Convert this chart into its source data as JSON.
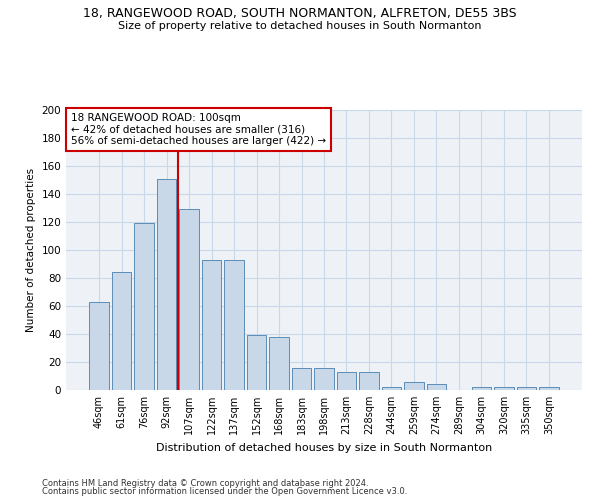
{
  "title_line1": "18, RANGEWOOD ROAD, SOUTH NORMANTON, ALFRETON, DE55 3BS",
  "title_line2": "Size of property relative to detached houses in South Normanton",
  "xlabel": "Distribution of detached houses by size in South Normanton",
  "ylabel": "Number of detached properties",
  "categories": [
    "46sqm",
    "61sqm",
    "76sqm",
    "92sqm",
    "107sqm",
    "122sqm",
    "137sqm",
    "152sqm",
    "168sqm",
    "183sqm",
    "198sqm",
    "213sqm",
    "228sqm",
    "244sqm",
    "259sqm",
    "274sqm",
    "289sqm",
    "304sqm",
    "320sqm",
    "335sqm",
    "350sqm"
  ],
  "values": [
    63,
    84,
    119,
    151,
    129,
    93,
    93,
    39,
    38,
    16,
    16,
    13,
    13,
    2,
    6,
    4,
    0,
    2,
    2,
    2,
    2
  ],
  "bar_color": "#c8d8e8",
  "bar_edge_color": "#5b8db8",
  "vline_x": 3.5,
  "vline_color": "#cc0000",
  "annotation_text": "18 RANGEWOOD ROAD: 100sqm\n← 42% of detached houses are smaller (316)\n56% of semi-detached houses are larger (422) →",
  "annotation_box_color": "#ffffff",
  "annotation_box_edge": "#cc0000",
  "footer_line1": "Contains HM Land Registry data © Crown copyright and database right 2024.",
  "footer_line2": "Contains public sector information licensed under the Open Government Licence v3.0.",
  "ylim": [
    0,
    200
  ],
  "yticks": [
    0,
    20,
    40,
    60,
    80,
    100,
    120,
    140,
    160,
    180,
    200
  ],
  "grid_color": "#c8d8e8",
  "background_color": "#eef2f7",
  "fig_width": 6.0,
  "fig_height": 5.0,
  "dpi": 100
}
